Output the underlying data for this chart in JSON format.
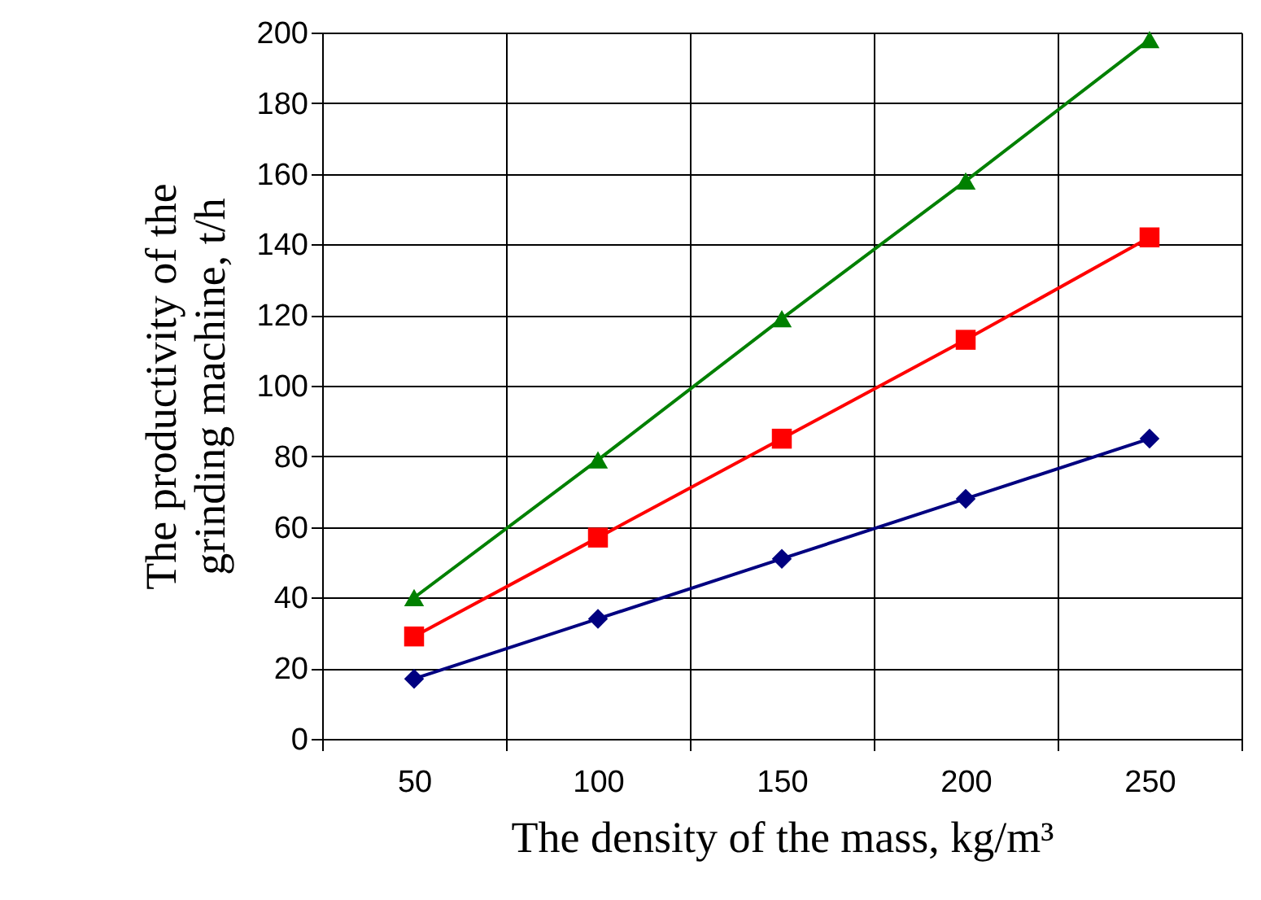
{
  "chart_data": {
    "type": "line",
    "xlabel": "The density of the mass, kg/m³",
    "ylabel": "The productivity of the grinding machine, t/h",
    "categories": [
      "50",
      "100",
      "150",
      "200",
      "250"
    ],
    "series": [
      {
        "color": "#000080",
        "marker": "diamond",
        "values": [
          17,
          34,
          51,
          68,
          85
        ]
      },
      {
        "color": "#ff0000",
        "marker": "square",
        "values": [
          29,
          57,
          85,
          113,
          142
        ]
      },
      {
        "color": "#008000",
        "marker": "triangle",
        "values": [
          40,
          79,
          119,
          158,
          198
        ]
      }
    ],
    "ylim": [
      0,
      200
    ],
    "yticks": [
      0,
      20,
      40,
      60,
      80,
      100,
      120,
      140,
      160,
      180,
      200
    ],
    "grid": true,
    "line_style": "solid"
  }
}
